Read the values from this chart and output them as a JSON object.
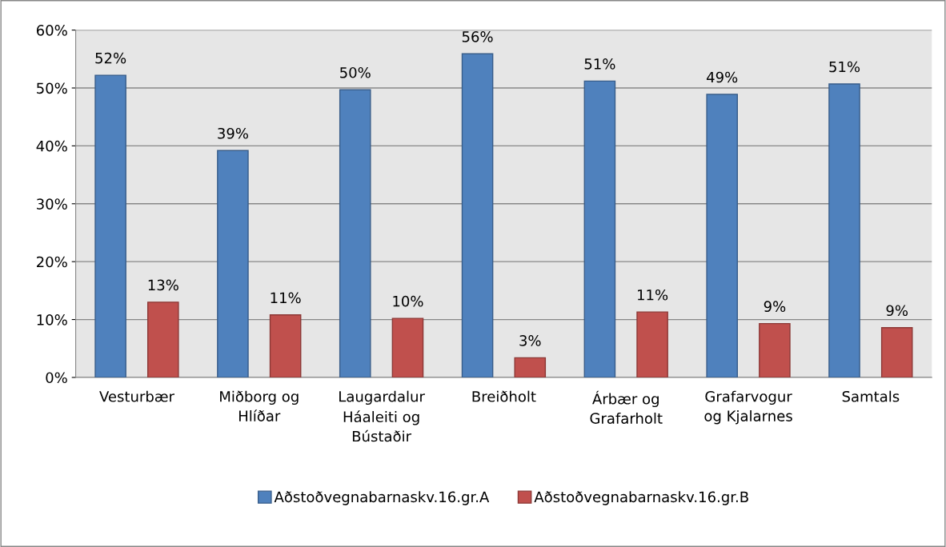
{
  "chart_data": {
    "type": "bar",
    "categories": [
      "Vesturbær",
      "Miðborg og\nHlíðar",
      "Laugardalur\nHáaleiti og\nBústaðir",
      "Breiðholt",
      "Árbær og\nGrafarholt",
      "Grafarvogur\nog Kjalarnes",
      "Samtals"
    ],
    "series": [
      {
        "name": "Aðstoðvegnabarnaskv.16.gr.A",
        "color": "#4f81bd",
        "values": [
          52.2,
          39.2,
          49.7,
          55.9,
          51.2,
          48.9,
          50.7
        ],
        "value_labels": [
          "52%",
          "39%",
          "50%",
          "56%",
          "51%",
          "49%",
          "51%"
        ]
      },
      {
        "name": "Aðstoðvegnabarnaskv.16.gr.B",
        "color": "#c0504d",
        "values": [
          13.0,
          10.8,
          10.2,
          3.4,
          11.3,
          9.3,
          8.6
        ],
        "value_labels": [
          "13%",
          "11%",
          "10%",
          "3%",
          "11%",
          "9%",
          "9%"
        ]
      }
    ],
    "ylim": [
      0,
      60
    ],
    "yticks": [
      {
        "value": 0,
        "label": "0%"
      },
      {
        "value": 10,
        "label": "10%"
      },
      {
        "value": 20,
        "label": "20%"
      },
      {
        "value": 30,
        "label": "30%"
      },
      {
        "value": 40,
        "label": "40%"
      },
      {
        "value": 50,
        "label": "50%"
      },
      {
        "value": 60,
        "label": "60%"
      }
    ],
    "grid": "y",
    "legend": "bottom"
  }
}
